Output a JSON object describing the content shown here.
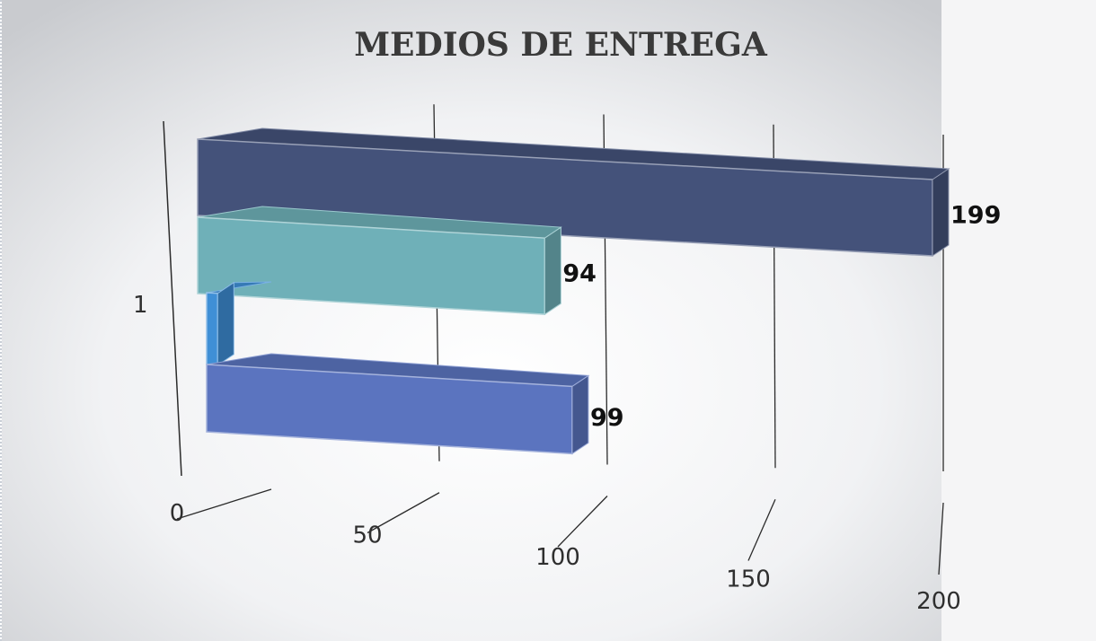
{
  "chart_data": {
    "type": "bar",
    "orientation": "horizontal",
    "style": "3d-clustered",
    "title": "MEDIOS DE ENTREGA",
    "categories": [
      "1"
    ],
    "series": [
      {
        "values": [
          199
        ],
        "color": "#44527a"
      },
      {
        "values": [
          94
        ],
        "color": "#6fb0b8"
      },
      {
        "values": [
          3
        ],
        "color": "#3f8fd6"
      },
      {
        "values": [
          99
        ],
        "color": "#5b74bf"
      }
    ],
    "data_labels": [
      "199",
      "94",
      "",
      "99"
    ],
    "xlim": [
      0,
      200
    ],
    "x_ticks": [
      "0",
      "50",
      "100",
      "150",
      "200"
    ],
    "gridlines": true,
    "legend": "none"
  }
}
